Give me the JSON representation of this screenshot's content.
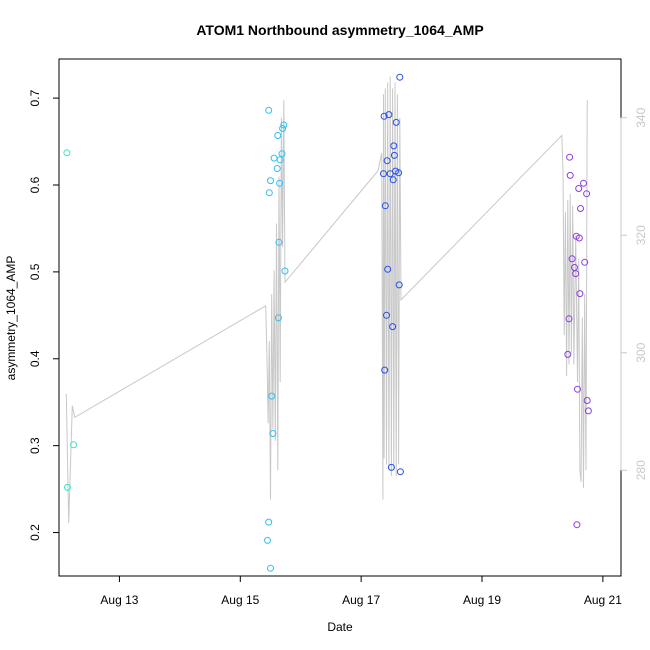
{
  "chart_data": {
    "type": "scatter",
    "title": "ATOM1 Northbound asymmetry_1064_AMP",
    "xlabel": "Date",
    "ylabel": "asymmetry_1064_AMP",
    "x_unit": "days since Aug 12, 2023 00:00",
    "xlim": [
      0.0,
      9.3
    ],
    "ylim": [
      0.15,
      0.745
    ],
    "y2lim": [
      262,
      350
    ],
    "x_ticks": [
      {
        "value": 1,
        "label": "Aug 13"
      },
      {
        "value": 3,
        "label": "Aug 15"
      },
      {
        "value": 5,
        "label": "Aug 17"
      },
      {
        "value": 7,
        "label": "Aug 19"
      },
      {
        "value": 9,
        "label": "Aug 21"
      }
    ],
    "y_ticks": [
      {
        "value": 0.2,
        "label": "0.2"
      },
      {
        "value": 0.3,
        "label": "0.3"
      },
      {
        "value": 0.4,
        "label": "0.4"
      },
      {
        "value": 0.5,
        "label": "0.5"
      },
      {
        "value": 0.6,
        "label": "0.6"
      },
      {
        "value": 0.7,
        "label": "0.7"
      }
    ],
    "y2_ticks": [
      {
        "value": 280,
        "label": "280"
      },
      {
        "value": 300,
        "label": "300"
      },
      {
        "value": 320,
        "label": "320"
      },
      {
        "value": 340,
        "label": "340"
      }
    ],
    "grid": false,
    "points": [
      {
        "x": 0.13,
        "y": 0.637,
        "color": "#40e0c0"
      },
      {
        "x": 0.14,
        "y": 0.252,
        "color": "#40e0c0"
      },
      {
        "x": 0.24,
        "y": 0.301,
        "color": "#40e0c0"
      },
      {
        "x": 3.47,
        "y": 0.686,
        "color": "#30c0f0"
      },
      {
        "x": 3.45,
        "y": 0.191,
        "color": "#30c0f0"
      },
      {
        "x": 3.47,
        "y": 0.212,
        "color": "#30c0f0"
      },
      {
        "x": 3.48,
        "y": 0.591,
        "color": "#30c0f0"
      },
      {
        "x": 3.5,
        "y": 0.605,
        "color": "#30c0f0"
      },
      {
        "x": 3.5,
        "y": 0.159,
        "color": "#30c0f0"
      },
      {
        "x": 3.52,
        "y": 0.357,
        "color": "#30c0f0"
      },
      {
        "x": 3.54,
        "y": 0.314,
        "color": "#30c0f0"
      },
      {
        "x": 3.56,
        "y": 0.631,
        "color": "#30c0f0"
      },
      {
        "x": 3.61,
        "y": 0.619,
        "color": "#30c0f0"
      },
      {
        "x": 3.62,
        "y": 0.657,
        "color": "#30c0f0"
      },
      {
        "x": 3.63,
        "y": 0.447,
        "color": "#30c0f0"
      },
      {
        "x": 3.64,
        "y": 0.534,
        "color": "#30c0f0"
      },
      {
        "x": 3.65,
        "y": 0.602,
        "color": "#30c0f0"
      },
      {
        "x": 3.66,
        "y": 0.629,
        "color": "#30c0f0"
      },
      {
        "x": 3.69,
        "y": 0.636,
        "color": "#30c0f0"
      },
      {
        "x": 3.7,
        "y": 0.665,
        "color": "#30c0f0"
      },
      {
        "x": 3.72,
        "y": 0.669,
        "color": "#30c0f0"
      },
      {
        "x": 3.74,
        "y": 0.501,
        "color": "#30c0f0"
      },
      {
        "x": 5.37,
        "y": 0.613,
        "color": "#2850e8"
      },
      {
        "x": 5.38,
        "y": 0.679,
        "color": "#2850e8"
      },
      {
        "x": 5.39,
        "y": 0.387,
        "color": "#2850e8"
      },
      {
        "x": 5.4,
        "y": 0.576,
        "color": "#2850e8"
      },
      {
        "x": 5.42,
        "y": 0.45,
        "color": "#2850e8"
      },
      {
        "x": 5.43,
        "y": 0.628,
        "color": "#2850e8"
      },
      {
        "x": 5.44,
        "y": 0.503,
        "color": "#2850e8"
      },
      {
        "x": 5.46,
        "y": 0.681,
        "color": "#2850e8"
      },
      {
        "x": 5.48,
        "y": 0.613,
        "color": "#2850e8"
      },
      {
        "x": 5.5,
        "y": 0.275,
        "color": "#2850e8"
      },
      {
        "x": 5.52,
        "y": 0.437,
        "color": "#2850e8"
      },
      {
        "x": 5.53,
        "y": 0.606,
        "color": "#2850e8"
      },
      {
        "x": 5.54,
        "y": 0.645,
        "color": "#2850e8"
      },
      {
        "x": 5.55,
        "y": 0.634,
        "color": "#2850e8"
      },
      {
        "x": 5.57,
        "y": 0.616,
        "color": "#2850e8"
      },
      {
        "x": 5.58,
        "y": 0.672,
        "color": "#2850e8"
      },
      {
        "x": 5.62,
        "y": 0.614,
        "color": "#2850e8"
      },
      {
        "x": 5.63,
        "y": 0.485,
        "color": "#2850e8"
      },
      {
        "x": 5.64,
        "y": 0.724,
        "color": "#2850e8"
      },
      {
        "x": 5.65,
        "y": 0.27,
        "color": "#2850e8"
      },
      {
        "x": 8.42,
        "y": 0.405,
        "color": "#8a40e0"
      },
      {
        "x": 8.44,
        "y": 0.446,
        "color": "#8a40e0"
      },
      {
        "x": 8.45,
        "y": 0.632,
        "color": "#8a40e0"
      },
      {
        "x": 8.46,
        "y": 0.611,
        "color": "#8a40e0"
      },
      {
        "x": 8.49,
        "y": 0.515,
        "color": "#8a40e0"
      },
      {
        "x": 8.53,
        "y": 0.505,
        "color": "#8a40e0"
      },
      {
        "x": 8.55,
        "y": 0.498,
        "color": "#8a40e0"
      },
      {
        "x": 8.56,
        "y": 0.541,
        "color": "#8a40e0"
      },
      {
        "x": 8.57,
        "y": 0.209,
        "color": "#8a40e0"
      },
      {
        "x": 8.58,
        "y": 0.365,
        "color": "#8a40e0"
      },
      {
        "x": 8.6,
        "y": 0.596,
        "color": "#8a40e0"
      },
      {
        "x": 8.61,
        "y": 0.539,
        "color": "#8a40e0"
      },
      {
        "x": 8.62,
        "y": 0.475,
        "color": "#8a40e0"
      },
      {
        "x": 8.63,
        "y": 0.573,
        "color": "#8a40e0"
      },
      {
        "x": 8.68,
        "y": 0.602,
        "color": "#8a40e0"
      },
      {
        "x": 8.7,
        "y": 0.511,
        "color": "#8a40e0"
      },
      {
        "x": 8.73,
        "y": 0.59,
        "color": "#8a40e0"
      },
      {
        "x": 8.74,
        "y": 0.352,
        "color": "#8a40e0"
      },
      {
        "x": 8.76,
        "y": 0.34,
        "color": "#8a40e0"
      }
    ],
    "secondary_line": {
      "axis": "right",
      "color": "#c8c8c8",
      "points": [
        [
          0.12,
          293
        ],
        [
          0.16,
          271
        ],
        [
          0.22,
          291
        ],
        [
          0.26,
          289
        ],
        [
          3.42,
          308
        ],
        [
          3.44,
          300
        ],
        [
          3.46,
          288
        ],
        [
          3.48,
          302
        ],
        [
          3.5,
          275
        ],
        [
          3.52,
          310
        ],
        [
          3.54,
          287
        ],
        [
          3.56,
          314
        ],
        [
          3.58,
          285
        ],
        [
          3.6,
          322
        ],
        [
          3.62,
          280
        ],
        [
          3.64,
          330
        ],
        [
          3.66,
          295
        ],
        [
          3.68,
          340
        ],
        [
          3.7,
          318
        ],
        [
          3.72,
          343
        ],
        [
          3.74,
          312
        ],
        [
          5.28,
          331
        ],
        [
          5.34,
          334
        ],
        [
          5.36,
          275
        ],
        [
          5.37,
          344
        ],
        [
          5.38,
          282
        ],
        [
          5.4,
          345
        ],
        [
          5.42,
          281
        ],
        [
          5.44,
          346
        ],
        [
          5.46,
          280
        ],
        [
          5.48,
          347
        ],
        [
          5.5,
          279
        ],
        [
          5.52,
          345
        ],
        [
          5.54,
          280
        ],
        [
          5.56,
          346
        ],
        [
          5.58,
          279
        ],
        [
          5.6,
          344
        ],
        [
          5.62,
          281
        ],
        [
          5.64,
          340
        ],
        [
          5.66,
          309
        ],
        [
          8.32,
          337
        ],
        [
          8.34,
          331
        ],
        [
          8.36,
          303
        ],
        [
          8.38,
          324
        ],
        [
          8.4,
          296
        ],
        [
          8.42,
          326
        ],
        [
          8.44,
          298
        ],
        [
          8.46,
          327
        ],
        [
          8.48,
          300
        ],
        [
          8.5,
          325
        ],
        [
          8.52,
          298
        ],
        [
          8.55,
          320
        ],
        [
          8.58,
          295
        ],
        [
          8.6,
          316
        ],
        [
          8.62,
          280
        ],
        [
          8.64,
          278
        ],
        [
          8.66,
          306
        ],
        [
          8.68,
          277
        ],
        [
          8.7,
          310
        ],
        [
          8.72,
          280
        ],
        [
          8.74,
          343
        ]
      ]
    }
  }
}
